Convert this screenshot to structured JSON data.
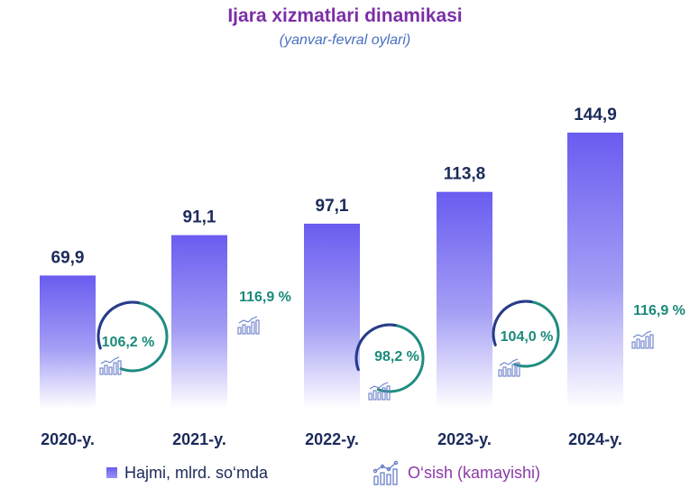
{
  "chart_data": {
    "type": "bar",
    "title": "Ijara xizmatlari dinamikasi",
    "subtitle": "(yanvar-fevral oylari)",
    "categories": [
      "2020-y.",
      "2021-y.",
      "2022-y.",
      "2023-y.",
      "2024-y."
    ],
    "series": [
      {
        "name": "Hajmi, mlrd. so‘mda",
        "values": [
          69.9,
          91.1,
          97.1,
          113.8,
          144.9
        ],
        "labels": [
          "69,9",
          "91,1",
          "97,1",
          "113,8",
          "144,9"
        ]
      },
      {
        "name": "O‘sish (kamayishi)",
        "values": [
          106.2,
          116.9,
          98.2,
          104.0,
          116.9
        ],
        "labels": [
          "106,2 %",
          "116,9 %",
          "98,2 %",
          "104,0 %",
          "116,9 %"
        ]
      }
    ],
    "ylim": [
      0,
      160
    ],
    "grid": false,
    "legend": "bottom",
    "colors": {
      "bar_top": "#6a5cf0",
      "bar_bottom": "#ffffff",
      "growth_text": "#1a8a7a",
      "circle": "#1f8c80",
      "circle_dark": "#2a3a8c",
      "value_text": "#1b2a5a",
      "title": "#7b2fa6",
      "icon": "#6a7fc9"
    }
  },
  "legend": {
    "volume_label": "Hajmi, mlrd. so‘mda",
    "growth_label": "O‘sish (kamayishi)",
    "growth_icon": "growth-chart-icon"
  }
}
